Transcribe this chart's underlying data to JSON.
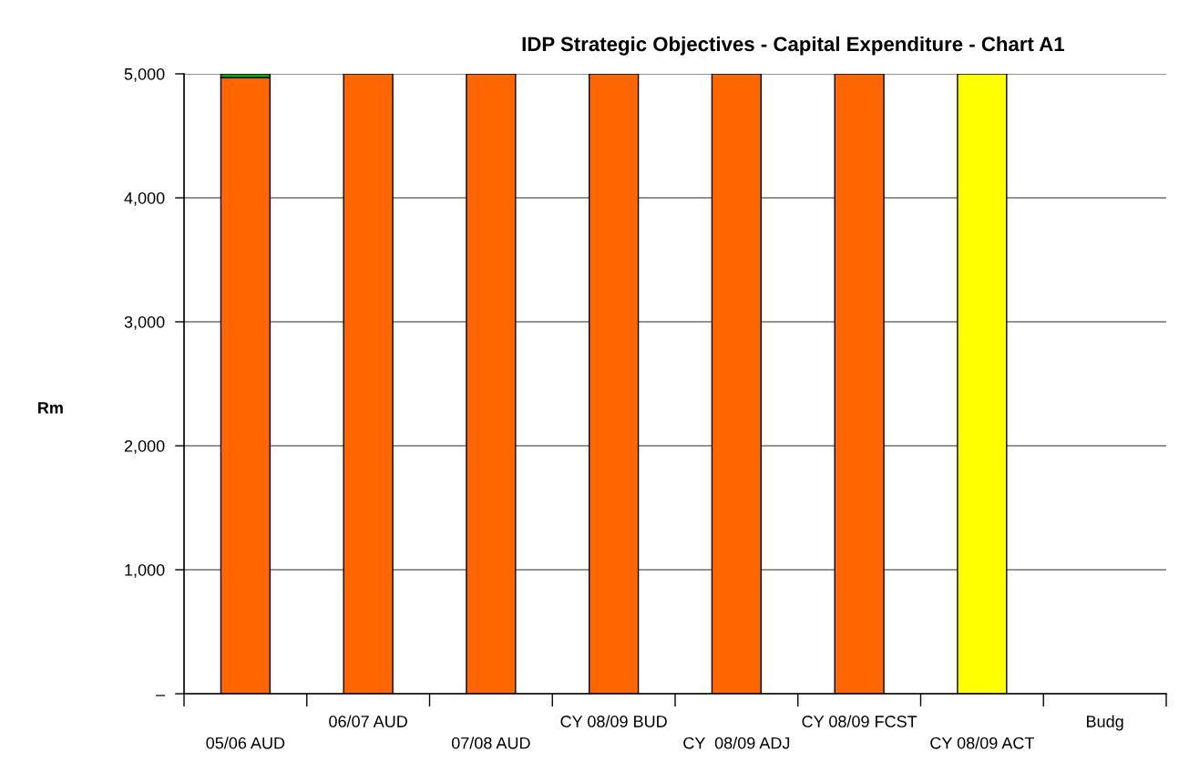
{
  "chart_data": {
    "type": "bar",
    "title": "IDP Strategic Objectives - Capital Expenditure - Chart A1",
    "ylabel": "Rm",
    "categories": [
      "05/06 AUD",
      "06/07 AUD",
      "07/08 AUD",
      "CY 08/09 BUD",
      "CY  08/09 ADJ",
      "CY 08/09 FCST",
      "CY 08/09 ACT",
      "Budg"
    ],
    "stacked": true,
    "series": [
      {
        "colors": [
          "#ff6600",
          "#ff6600",
          "#ff6600",
          "#ff6600",
          "#ff6600",
          "#ff6600",
          "#ffff00",
          "#ff6600"
        ],
        "values": [
          4970,
          5000,
          5000,
          5000,
          5000,
          5000,
          5000,
          null
        ]
      },
      {
        "color": "#00b000",
        "values": [
          30,
          null,
          null,
          null,
          null,
          null,
          null,
          null
        ]
      }
    ],
    "ylim": [
      0,
      5000
    ],
    "yticks": [
      {
        "value": 0,
        "label": "–"
      },
      {
        "value": 1000,
        "label": "1,000"
      },
      {
        "value": 2000,
        "label": "2,000"
      },
      {
        "value": 3000,
        "label": "3,000"
      },
      {
        "value": 4000,
        "label": "4,000"
      },
      {
        "value": 5000,
        "label": "5,000"
      }
    ],
    "grid": "y"
  }
}
